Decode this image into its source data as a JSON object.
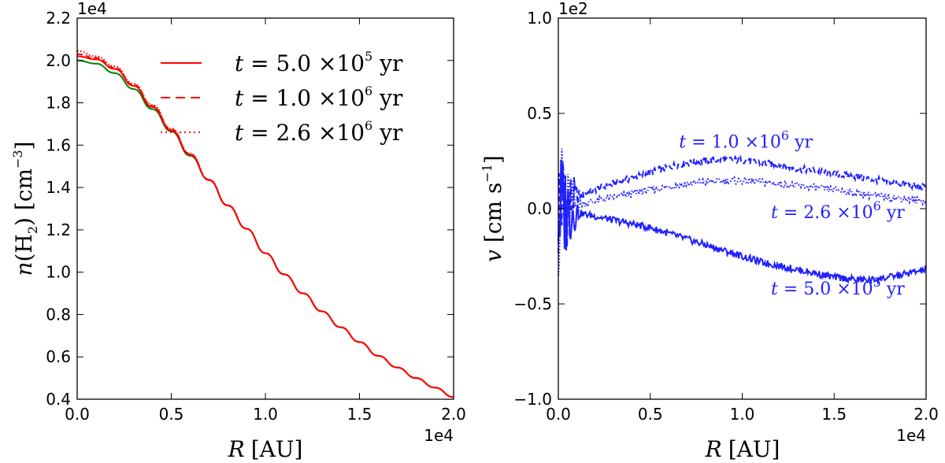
{
  "chart_data": [
    {
      "type": "line",
      "title": "",
      "xlabel": "R [AU]",
      "xlabel_var": "R",
      "xlabel_unit": "[AU]",
      "ylabel": "n(H2) [cm^-3]",
      "ylabel_parts": {
        "var": "n",
        "open": "(H",
        "sub": "2",
        "close": ")",
        "unit": " [cm",
        "unit_sup": "−3",
        "unit_end": "]"
      },
      "x_multiplier": "1e4",
      "y_multiplier": "1e4",
      "xlim": [
        0,
        2.0
      ],
      "ylim": [
        0.4,
        2.2
      ],
      "xticks": [
        "0.0",
        "0.5",
        "1.0",
        "1.5",
        "2.0"
      ],
      "yticks": [
        "0.4",
        "0.6",
        "0.8",
        "1.0",
        "1.2",
        "1.4",
        "1.6",
        "1.8",
        "2.0",
        "2.2"
      ],
      "legend_position": "top-right",
      "series": [
        {
          "name": "initial profile",
          "color": "#008000",
          "style": "solid",
          "in_legend": false,
          "x": [
            0,
            0.1,
            0.2,
            0.3,
            0.4,
            0.5,
            0.6,
            0.7,
            0.8,
            0.9,
            1.0,
            1.1,
            1.2,
            1.3,
            1.4,
            1.5,
            1.6,
            1.7,
            1.8,
            1.9,
            2.0
          ],
          "y": [
            2.0,
            1.985,
            1.94,
            1.865,
            1.77,
            1.665,
            1.55,
            1.435,
            1.315,
            1.205,
            1.09,
            0.99,
            0.9,
            0.815,
            0.74,
            0.67,
            0.605,
            0.55,
            0.5,
            0.455,
            0.41
          ]
        },
        {
          "name": "t=5.0 ×10^5 yr",
          "label_parts": [
            "t",
            " = 5.0 ×10",
            "5",
            "  yr"
          ],
          "color": "#ff0000",
          "style": "solid",
          "in_legend": true,
          "x": [
            0,
            0.1,
            0.2,
            0.3,
            0.4,
            0.5,
            0.6,
            0.7,
            0.8,
            0.9,
            1.0,
            1.1,
            1.2,
            1.3,
            1.4,
            1.5,
            1.6,
            1.7,
            1.8,
            1.9,
            2.0
          ],
          "y": [
            2.02,
            2.005,
            1.96,
            1.88,
            1.78,
            1.67,
            1.555,
            1.435,
            1.315,
            1.205,
            1.09,
            0.99,
            0.9,
            0.815,
            0.74,
            0.67,
            0.605,
            0.55,
            0.5,
            0.455,
            0.41
          ]
        },
        {
          "name": "t=1.0 ×10^6 yr",
          "label_parts": [
            "t",
            " = 1.0 ×10",
            "6",
            "  yr"
          ],
          "color": "#ff0000",
          "style": "dashed",
          "in_legend": true,
          "x": [
            0,
            0.1,
            0.2,
            0.3,
            0.4,
            0.5,
            0.6,
            0.7,
            0.8,
            0.9,
            1.0,
            1.1,
            1.2,
            1.3,
            1.4,
            1.5,
            1.6,
            1.7,
            1.8,
            1.9,
            2.0
          ],
          "y": [
            2.03,
            2.012,
            1.965,
            1.885,
            1.785,
            1.675,
            1.558,
            1.437,
            1.316,
            1.205,
            1.09,
            0.99,
            0.9,
            0.815,
            0.74,
            0.67,
            0.605,
            0.55,
            0.5,
            0.455,
            0.41
          ]
        },
        {
          "name": "t=2.6 ×10^6 yr",
          "label_parts": [
            "t",
            " = 2.6 ×10",
            "6",
            "  yr"
          ],
          "color": "#ff0000",
          "style": "dotted",
          "in_legend": true,
          "x": [
            0,
            0.1,
            0.2,
            0.3,
            0.4,
            0.5,
            0.6,
            0.7,
            0.8,
            0.9,
            1.0,
            1.1,
            1.2,
            1.3,
            1.4,
            1.5,
            1.6,
            1.7,
            1.8,
            1.9,
            2.0
          ],
          "y": [
            2.045,
            2.02,
            1.972,
            1.89,
            1.79,
            1.678,
            1.56,
            1.438,
            1.317,
            1.205,
            1.09,
            0.99,
            0.9,
            0.815,
            0.74,
            0.67,
            0.605,
            0.55,
            0.5,
            0.455,
            0.41
          ]
        }
      ]
    },
    {
      "type": "line",
      "title": "",
      "xlabel": "R [AU]",
      "xlabel_var": "R",
      "xlabel_unit": "[AU]",
      "ylabel": "v [cm s^-1]",
      "ylabel_parts": {
        "var": "v",
        "unit": " [cm s",
        "unit_sup": "−1",
        "unit_end": "]"
      },
      "x_multiplier": "1e4",
      "y_multiplier": "1e2",
      "xlim": [
        0,
        2.0
      ],
      "ylim": [
        -1.0,
        1.0
      ],
      "xticks": [
        "0.0",
        "0.5",
        "1.0",
        "1.5",
        "2.0"
      ],
      "yticks": [
        "−1.0",
        "−0.5",
        "0.0",
        "0.5",
        "1.0"
      ],
      "color": "#1f1fff",
      "series": [
        {
          "name": "t=1.0 ×10^6 yr",
          "label_parts": [
            "t",
            " = 1.0 ×10",
            "6",
            "  yr"
          ],
          "style": "dashed",
          "x": [
            0,
            0.02,
            0.05,
            0.1,
            0.2,
            0.3,
            0.4,
            0.5,
            0.6,
            0.7,
            0.8,
            0.9,
            1.0,
            1.1,
            1.2,
            1.3,
            1.4,
            1.5,
            1.6,
            1.7,
            1.8,
            1.9,
            2.0
          ],
          "y": [
            0.0,
            0.06,
            0.02,
            0.06,
            0.1,
            0.13,
            0.16,
            0.19,
            0.22,
            0.24,
            0.25,
            0.26,
            0.255,
            0.24,
            0.23,
            0.21,
            0.2,
            0.18,
            0.17,
            0.155,
            0.14,
            0.125,
            0.11
          ]
        },
        {
          "name": "t=2.6 ×10^6 yr",
          "label_parts": [
            "t",
            " = 2.6 ×10",
            "6",
            "  yr"
          ],
          "style": "dotted",
          "x": [
            0,
            0.02,
            0.05,
            0.1,
            0.2,
            0.3,
            0.4,
            0.5,
            0.6,
            0.7,
            0.8,
            0.9,
            1.0,
            1.1,
            1.2,
            1.3,
            1.4,
            1.5,
            1.6,
            1.7,
            1.8,
            1.9,
            2.0
          ],
          "y": [
            0.0,
            0.04,
            0.0,
            0.02,
            0.04,
            0.06,
            0.08,
            0.1,
            0.115,
            0.13,
            0.14,
            0.145,
            0.145,
            0.14,
            0.13,
            0.12,
            0.11,
            0.1,
            0.085,
            0.07,
            0.06,
            0.05,
            0.04
          ]
        },
        {
          "name": "t=5.0 ×10^5 yr",
          "label_parts": [
            "t",
            " = 5.0 ×10",
            "5",
            "  yr"
          ],
          "style": "solid",
          "x": [
            0,
            0.02,
            0.05,
            0.1,
            0.2,
            0.3,
            0.4,
            0.5,
            0.6,
            0.7,
            0.8,
            0.9,
            1.0,
            1.1,
            1.2,
            1.3,
            1.4,
            1.5,
            1.6,
            1.7,
            1.8,
            1.9,
            2.0
          ],
          "y": [
            0.0,
            -0.01,
            0.0,
            -0.02,
            -0.04,
            -0.06,
            -0.08,
            -0.1,
            -0.13,
            -0.16,
            -0.19,
            -0.22,
            -0.25,
            -0.28,
            -0.3,
            -0.32,
            -0.34,
            -0.36,
            -0.37,
            -0.375,
            -0.36,
            -0.34,
            -0.32
          ]
        }
      ],
      "annotations": [
        {
          "series": 0,
          "x": 1.02,
          "y": 0.32
        },
        {
          "series": 1,
          "x": 1.52,
          "y": -0.05
        },
        {
          "series": 2,
          "x": 1.52,
          "y": -0.45
        }
      ]
    }
  ]
}
